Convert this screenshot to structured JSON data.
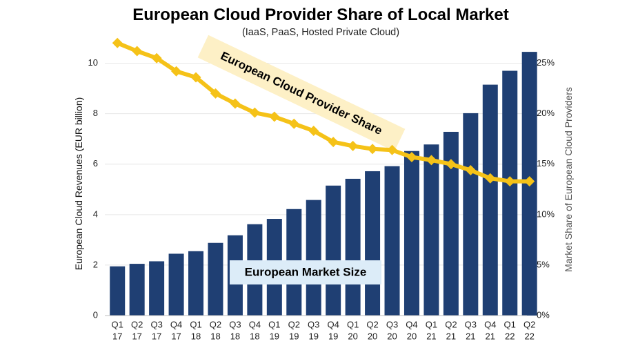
{
  "chart_data": {
    "type": "bar",
    "title": "European Cloud Provider Share of Local Market",
    "subtitle": "(IaaS, PaaS, Hosted Private Cloud)",
    "categories": [
      [
        "Q1",
        "17"
      ],
      [
        "Q2",
        "17"
      ],
      [
        "Q3",
        "17"
      ],
      [
        "Q4",
        "17"
      ],
      [
        "Q1",
        "18"
      ],
      [
        "Q2",
        "18"
      ],
      [
        "Q3",
        "18"
      ],
      [
        "Q4",
        "18"
      ],
      [
        "Q1",
        "19"
      ],
      [
        "Q2",
        "19"
      ],
      [
        "Q3",
        "19"
      ],
      [
        "Q4",
        "19"
      ],
      [
        "Q1",
        "20"
      ],
      [
        "Q2",
        "20"
      ],
      [
        "Q3",
        "20"
      ],
      [
        "Q4",
        "20"
      ],
      [
        "Q1",
        "21"
      ],
      [
        "Q2",
        "21"
      ],
      [
        "Q3",
        "21"
      ],
      [
        "Q4",
        "21"
      ],
      [
        "Q1",
        "22"
      ],
      [
        "Q2",
        "22"
      ]
    ],
    "series": [
      {
        "name": "European Market Size",
        "type": "bar",
        "axis": "left",
        "color": "#1f3f73",
        "values": [
          1.95,
          2.05,
          2.15,
          2.45,
          2.55,
          2.88,
          3.18,
          3.62,
          3.83,
          4.22,
          4.58,
          5.15,
          5.42,
          5.72,
          5.92,
          6.52,
          6.78,
          7.28,
          8.02,
          9.15,
          9.7,
          10.45
        ]
      },
      {
        "name": "European Cloud Provider Share",
        "type": "line",
        "axis": "right",
        "color": "#f5c218",
        "values": [
          0.27,
          0.262,
          0.255,
          0.242,
          0.236,
          0.22,
          0.21,
          0.201,
          0.197,
          0.19,
          0.183,
          0.172,
          0.168,
          0.165,
          0.164,
          0.157,
          0.154,
          0.15,
          0.144,
          0.136,
          0.133,
          0.133
        ]
      }
    ],
    "ylabel": "European Cloud Revenues (EUR billion)",
    "ylim": [
      0,
      11
    ],
    "yticks": [
      0,
      2,
      4,
      6,
      8,
      10
    ],
    "y2label": "Market Share of European Cloud Providers",
    "y2lim": [
      0,
      0.275
    ],
    "y2ticks": [
      {
        "v": 0,
        "label": "0%"
      },
      {
        "v": 0.05,
        "label": "5%"
      },
      {
        "v": 0.1,
        "label": "10%"
      },
      {
        "v": 0.15,
        "label": "15%"
      },
      {
        "v": 0.2,
        "label": "20%"
      },
      {
        "v": 0.25,
        "label": "25%"
      }
    ],
    "annotations": {
      "line_label": "European Cloud Provider Share",
      "bar_label": "European Market Size"
    },
    "colors": {
      "annotation_line_bg": "#fdf0c6",
      "annotation_bar_bg": "#dcecf8",
      "grid": "#e6e6e6"
    },
    "grid": true
  }
}
